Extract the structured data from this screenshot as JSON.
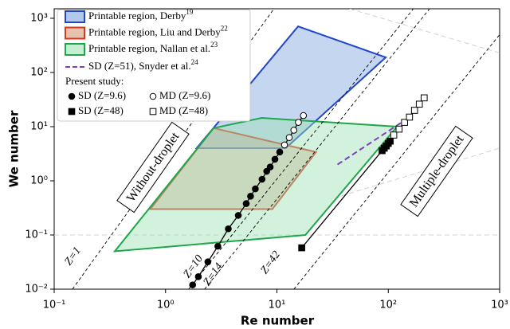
{
  "chart_data": {
    "type": "scatter",
    "x_label": "Re number",
    "y_label": "We number",
    "log_x": true,
    "log_y": true,
    "xlim": [
      0.1,
      1000
    ],
    "ylim": [
      0.01,
      1500
    ],
    "xticks": [
      {
        "value": 0.1,
        "label": "10⁻¹"
      },
      {
        "value": 1,
        "label": "10⁰"
      },
      {
        "value": 10,
        "label": "10¹"
      },
      {
        "value": 100,
        "label": "10²"
      },
      {
        "value": 1000,
        "label": "10³"
      }
    ],
    "yticks": [
      {
        "value": 0.01,
        "label": "10⁻²"
      },
      {
        "value": 0.1,
        "label": "10⁻¹"
      },
      {
        "value": 1,
        "label": "10⁰"
      },
      {
        "value": 10,
        "label": "10¹"
      },
      {
        "value": 100,
        "label": "10²"
      },
      {
        "value": 1000,
        "label": "10³"
      }
    ],
    "guides": [
      {
        "x": [
          0.1,
          1000
        ],
        "y": [
          0.1,
          0.1
        ]
      },
      {
        "x": [
          45,
          1000
        ],
        "y": [
          1500,
          230
        ]
      },
      {
        "x": [
          38,
          1000
        ],
        "y": [
          0.53,
          4
        ]
      }
    ],
    "regions": [
      {
        "name": "Printable region, Derby",
        "ref": "19",
        "color": "#2346c8",
        "fill": "#7fa3e0",
        "x": [
          1.9,
          15.5,
          95,
          12
        ],
        "y": [
          4,
          710,
          190,
          4
        ]
      },
      {
        "name": "Printable region, Liu and Derby",
        "ref": "22",
        "color": "#d23a22",
        "fill": "#d79a7a",
        "x": [
          2.7,
          22.5,
          9.1,
          0.73
        ],
        "y": [
          9.4,
          3.4,
          0.3,
          0.3
        ]
      },
      {
        "name": "Printable region, Nallan et al.",
        "ref": "23",
        "color": "#1fa64a",
        "fill": "#9ee2b6",
        "x": [
          2.7,
          7.3,
          120,
          18,
          0.35
        ],
        "y": [
          9.4,
          14.5,
          10,
          0.1,
          0.05
        ]
      }
    ],
    "reference_lines": [
      {
        "label": "Z=1",
        "x": [
          0.146,
          9.4
        ],
        "y": [
          0.01,
          1500
        ]
      },
      {
        "label": "Z=10",
        "x": [
          1.61,
          168
        ],
        "y": [
          0.01,
          1500
        ]
      },
      {
        "label": "Z=14",
        "x": [
          2.24,
          235
        ],
        "y": [
          0.01,
          1500
        ]
      },
      {
        "label": "Z=42",
        "x": [
          14.2,
          1000
        ],
        "y": [
          0.01,
          500
        ]
      }
    ],
    "snyder": {
      "name": "SD (Z=51), Snyder et al.",
      "ref": "24",
      "color": "#7b3fbf",
      "x": [
        35,
        140
      ],
      "y": [
        2,
        13
      ]
    },
    "legend_heading": "Present study:",
    "series": [
      {
        "name": "SD (Z=9.6)",
        "marker": "circle",
        "filled": true,
        "x": [
          1.75,
          1.97,
          2.4,
          2.95,
          3.66,
          4.5,
          5.3,
          5.8,
          6.4,
          7.35,
          8.1,
          8.7,
          9.6,
          10.6
        ],
        "y": [
          0.012,
          0.017,
          0.032,
          0.062,
          0.13,
          0.23,
          0.38,
          0.52,
          0.71,
          1.07,
          1.5,
          1.8,
          2.5,
          3.4
        ]
      },
      {
        "name": "MD (Z=9.6)",
        "marker": "circle",
        "filled": false,
        "x": [
          11.7,
          12.9,
          14.2,
          15.6,
          17.3
        ],
        "y": [
          4.6,
          6.3,
          8.6,
          12,
          16
        ]
      },
      {
        "name": "SD (Z=48)",
        "marker": "square",
        "filled": true,
        "x": [
          16.7,
          88,
          92,
          96,
          100,
          104
        ],
        "y": [
          0.058,
          3.6,
          4.0,
          4.4,
          4.9,
          5.4
        ]
      },
      {
        "name": "MD (Z=48)",
        "marker": "square",
        "filled": false,
        "x": [
          112,
          125,
          140,
          155,
          172,
          190,
          210
        ],
        "y": [
          7,
          9,
          12,
          15,
          20,
          26,
          34
        ]
      }
    ],
    "annotations": [
      "Without-droplet",
      "Multiple-droplet"
    ]
  }
}
